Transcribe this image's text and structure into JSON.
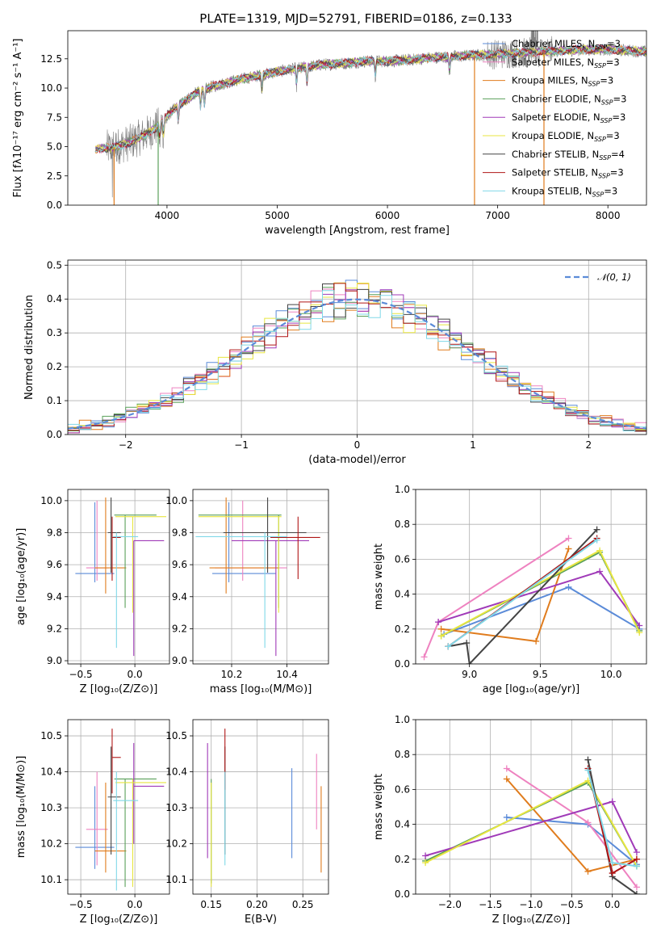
{
  "figure": {
    "title": "PLATE=1319, MJD=52791, FIBERID=0186, z=0.133"
  },
  "colors": {
    "Chabrier MILES": "#5b8bd8",
    "Salpeter MILES": "#ee82c0",
    "Kroupa MILES": "#e07c1d",
    "Chabrier ELODIE": "#5aa05a",
    "Salpeter ELODIE": "#a03ab8",
    "Kroupa ELODIE": "#e8e640",
    "Chabrier STELIB": "#444444",
    "Salpeter STELIB": "#b01616",
    "Kroupa STELIB": "#80d8e8",
    "gaussian": "#5b8bd8",
    "observed": "#808080",
    "grid": "#b0b0b0"
  },
  "chart_data": [
    {
      "id": "spectrum",
      "type": "line",
      "xlabel": "wavelength [Angstrom, rest frame]",
      "ylabel": "Flux [fλ10⁻¹⁷ erg cm⁻² s⁻¹ A⁻¹]",
      "xlim": [
        3100,
        8350
      ],
      "ylim": [
        0,
        14.9
      ],
      "xticks": [
        4000,
        5000,
        6000,
        7000,
        8000
      ],
      "yticks": [
        0.0,
        2.5,
        5.0,
        7.5,
        10.0,
        12.5
      ],
      "legend_position": "top-right",
      "continuum": {
        "x": [
          3350,
          3500,
          3650,
          3800,
          3900,
          4000,
          4100,
          4250,
          4400,
          4600,
          4800,
          5000,
          5200,
          5400,
          5600,
          5800,
          6000,
          6200,
          6400,
          6600,
          6800,
          7000,
          7200,
          7400,
          7600,
          7800,
          8000,
          8200,
          8350
        ],
        "y": [
          4.8,
          4.9,
          5.3,
          6.0,
          6.6,
          7.6,
          8.5,
          9.5,
          10.1,
          10.6,
          11.0,
          11.4,
          11.7,
          12.0,
          12.1,
          12.3,
          12.3,
          12.4,
          12.6,
          12.7,
          12.8,
          12.9,
          13.0,
          13.1,
          13.2,
          13.3,
          13.3,
          13.2,
          13.1
        ]
      },
      "series": [
        {
          "name": "Chabrier MILES, N$_{SSP}$=3",
          "legend": "Chabrier MILES, N",
          "sub": "SSP",
          "tail": "=3"
        },
        {
          "name": "Salpeter MILES, N$_{SSP}$=3",
          "legend": "Salpeter MILES, N",
          "sub": "SSP",
          "tail": "=3"
        },
        {
          "name": "Kroupa MILES, N$_{SSP}$=3",
          "legend": "Kroupa MILES, N",
          "sub": "SSP",
          "tail": "=3"
        },
        {
          "name": "Chabrier ELODIE, N$_{SSP}$=3",
          "legend": "Chabrier ELODIE, N",
          "sub": "SSP",
          "tail": "=3"
        },
        {
          "name": "Salpeter ELODIE, N$_{SSP}$=3",
          "legend": "Salpeter ELODIE, N",
          "sub": "SSP",
          "tail": "=3"
        },
        {
          "name": "Kroupa ELODIE, N$_{SSP}$=3",
          "legend": "Kroupa ELODIE, N",
          "sub": "SSP",
          "tail": "=3"
        },
        {
          "name": "Chabrier STELIB, N$_{SSP}$=4",
          "legend": "Chabrier STELIB, N",
          "sub": "SSP",
          "tail": "=4"
        },
        {
          "name": "Salpeter STELIB, N$_{SSP}$=3",
          "legend": "Salpeter STELIB, N",
          "sub": "SSP",
          "tail": "=3"
        },
        {
          "name": "Kroupa STELIB, N$_{SSP}$=3",
          "legend": "Kroupa STELIB, N",
          "sub": "SSP",
          "tail": "=3"
        }
      ],
      "spikes": [
        {
          "x": 3520,
          "color": "Kroupa MILES"
        },
        {
          "x": 3920,
          "color": "Chabrier ELODIE"
        },
        {
          "x": 6790,
          "color": "Kroupa MILES"
        },
        {
          "x": 7420,
          "color": "Kroupa MILES"
        }
      ]
    },
    {
      "id": "residuals",
      "type": "line",
      "xlabel": "(data-model)/error",
      "ylabel": "Normed distribution",
      "xlim": [
        -2.5,
        2.5
      ],
      "ylim": [
        0,
        0.515
      ],
      "xticks": [
        -2,
        -1,
        0,
        1,
        2
      ],
      "yticks": [
        0.0,
        0.1,
        0.2,
        0.3,
        0.4,
        0.5
      ],
      "legend_position": "top-right",
      "gaussian_label": "𝒩(0, 1)",
      "bin_width": 0.1
    },
    {
      "id": "age_vs_Z",
      "type": "scatter",
      "xlabel": "Z [log₁₀(Z/Z⊙)]",
      "ylabel": "age  [log₁₀(age/yr)]",
      "xlim": [
        -0.62,
        0.32
      ],
      "ylim": [
        8.98,
        10.07
      ],
      "xticks": [
        -0.5,
        0.0
      ],
      "yticks": [
        9.0,
        9.2,
        9.4,
        9.6,
        9.8,
        10.0
      ],
      "points": [
        {
          "s": "Chabrier MILES",
          "x": -0.37,
          "y": 9.545,
          "xlo": -0.55,
          "xhi": -0.19,
          "ylo": 9.49,
          "yhi": 9.99
        },
        {
          "s": "Salpeter MILES",
          "x": -0.35,
          "y": 9.58,
          "xlo": -0.45,
          "xhi": -0.25,
          "ylo": 9.5,
          "yhi": 10.0
        },
        {
          "s": "Kroupa MILES",
          "x": -0.27,
          "y": 9.58,
          "xlo": -0.37,
          "xhi": -0.08,
          "ylo": 9.42,
          "yhi": 10.02
        },
        {
          "s": "Chabrier ELODIE",
          "x": -0.09,
          "y": 9.91,
          "xlo": -0.19,
          "xhi": 0.2,
          "ylo": 9.33,
          "yhi": 9.91
        },
        {
          "s": "Salpeter ELODIE",
          "x": -0.01,
          "y": 9.75,
          "xlo": -0.01,
          "xhi": 0.27,
          "ylo": 9.03,
          "yhi": 9.75
        },
        {
          "s": "Kroupa ELODIE",
          "x": -0.02,
          "y": 9.9,
          "xlo": -0.18,
          "xhi": 0.29,
          "ylo": 9.3,
          "yhi": 9.9
        },
        {
          "s": "Chabrier STELIB",
          "x": -0.22,
          "y": 9.8,
          "xlo": -0.25,
          "xhi": -0.13,
          "ylo": 9.55,
          "yhi": 10.02
        },
        {
          "s": "Salpeter STELIB",
          "x": -0.21,
          "y": 9.77,
          "xlo": -0.21,
          "xhi": -0.13,
          "ylo": 9.5,
          "yhi": 9.9
        },
        {
          "s": "Kroupa STELIB",
          "x": -0.17,
          "y": 9.775,
          "xlo": -0.2,
          "xhi": 0.03,
          "ylo": 9.08,
          "yhi": 9.8
        }
      ]
    },
    {
      "id": "age_vs_mass",
      "type": "scatter",
      "xlabel": "mass [log₁₀(M/M⊙)]",
      "ylabel": "",
      "xlim": [
        10.06,
        10.55
      ],
      "ylim": [
        8.98,
        10.07
      ],
      "xticks": [
        10.2,
        10.4
      ],
      "yticks": [
        9.0,
        9.2,
        9.4,
        9.6,
        9.8,
        10.0
      ],
      "points": [
        {
          "s": "Chabrier MILES",
          "x": 10.19,
          "y": 9.545,
          "xlo": 10.13,
          "xhi": 10.36,
          "ylo": 9.49,
          "yhi": 9.99
        },
        {
          "s": "Salpeter MILES",
          "x": 10.24,
          "y": 9.58,
          "xlo": 10.14,
          "xhi": 10.4,
          "ylo": 9.5,
          "yhi": 10.0
        },
        {
          "s": "Kroupa MILES",
          "x": 10.18,
          "y": 9.58,
          "xlo": 10.12,
          "xhi": 10.37,
          "ylo": 9.42,
          "yhi": 10.02
        },
        {
          "s": "Chabrier ELODIE",
          "x": 10.37,
          "y": 9.91,
          "xlo": 10.08,
          "xhi": 10.38,
          "ylo": 9.33,
          "yhi": 9.91
        },
        {
          "s": "Salpeter ELODIE",
          "x": 10.36,
          "y": 9.75,
          "xlo": 10.2,
          "xhi": 10.48,
          "ylo": 9.03,
          "yhi": 9.75
        },
        {
          "s": "Kroupa ELODIE",
          "x": 10.37,
          "y": 9.9,
          "xlo": 10.08,
          "xhi": 10.38,
          "ylo": 9.3,
          "yhi": 9.9
        },
        {
          "s": "Chabrier STELIB",
          "x": 10.33,
          "y": 9.8,
          "xlo": 10.17,
          "xhi": 10.47,
          "ylo": 9.55,
          "yhi": 10.02
        },
        {
          "s": "Salpeter STELIB",
          "x": 10.44,
          "y": 9.77,
          "xlo": 10.34,
          "xhi": 10.52,
          "ylo": 9.51,
          "yhi": 9.9
        },
        {
          "s": "Kroupa STELIB",
          "x": 10.32,
          "y": 9.775,
          "xlo": 10.07,
          "xhi": 10.4,
          "ylo": 9.08,
          "yhi": 9.8
        }
      ]
    },
    {
      "id": "weight_vs_age",
      "type": "line",
      "xlabel": "age  [log₁₀(age/yr)]",
      "ylabel": "mass weight",
      "xlim": [
        8.62,
        10.25
      ],
      "ylim": [
        0,
        1.0
      ],
      "xticks": [
        9.0,
        9.5,
        10.0
      ],
      "yticks": [
        0.0,
        0.2,
        0.4,
        0.6,
        0.8,
        1.0
      ],
      "series": [
        {
          "s": "Chabrier MILES",
          "x": [
            8.82,
            9.7,
            10.2
          ],
          "y": [
            0.17,
            0.44,
            0.2
          ]
        },
        {
          "s": "Salpeter MILES",
          "x": [
            8.68,
            8.78,
            9.7
          ],
          "y": [
            0.04,
            0.24,
            0.72
          ]
        },
        {
          "s": "Kroupa MILES",
          "x": [
            8.8,
            9.47,
            9.7
          ],
          "y": [
            0.2,
            0.13,
            0.66
          ]
        },
        {
          "s": "Chabrier ELODIE",
          "x": [
            8.8,
            9.92,
            10.2
          ],
          "y": [
            0.16,
            0.64,
            0.19
          ]
        },
        {
          "s": "Salpeter ELODIE",
          "x": [
            8.78,
            9.92,
            10.2
          ],
          "y": [
            0.24,
            0.53,
            0.22
          ]
        },
        {
          "s": "Kroupa ELODIE",
          "x": [
            8.8,
            9.92,
            10.2
          ],
          "y": [
            0.16,
            0.65,
            0.18
          ]
        },
        {
          "s": "Chabrier STELIB",
          "x": [
            8.85,
            8.98,
            9.0,
            9.9
          ],
          "y": [
            0.1,
            0.12,
            0.0,
            0.77
          ]
        },
        {
          "s": "Salpeter STELIB",
          "x": [
            8.85,
            9.9
          ],
          "y": [
            0.1,
            0.72
          ]
        },
        {
          "s": "Kroupa STELIB",
          "x": [
            8.85,
            9.9
          ],
          "y": [
            0.1,
            0.71
          ]
        }
      ]
    },
    {
      "id": "mass_vs_Z",
      "type": "scatter",
      "xlabel": "Z [log₁₀(Z/Z⊙)]",
      "ylabel": "mass [log₁₀(M/M⊙)]",
      "xlim": [
        -0.62,
        0.32
      ],
      "ylim": [
        10.06,
        10.545
      ],
      "xticks": [
        -0.5,
        0.0
      ],
      "yticks": [
        10.1,
        10.2,
        10.3,
        10.4,
        10.5
      ],
      "points": [
        {
          "s": "Chabrier MILES",
          "x": -0.37,
          "y": 10.19,
          "xlo": -0.55,
          "xhi": -0.19,
          "ylo": 10.13,
          "yhi": 10.36
        },
        {
          "s": "Salpeter MILES",
          "x": -0.35,
          "y": 10.24,
          "xlo": -0.45,
          "xhi": -0.25,
          "ylo": 10.14,
          "yhi": 10.4
        },
        {
          "s": "Kroupa MILES",
          "x": -0.27,
          "y": 10.18,
          "xlo": -0.37,
          "xhi": -0.08,
          "ylo": 10.12,
          "yhi": 10.37
        },
        {
          "s": "Chabrier ELODIE",
          "x": -0.09,
          "y": 10.38,
          "xlo": -0.19,
          "xhi": 0.2,
          "ylo": 10.08,
          "yhi": 10.38
        },
        {
          "s": "Salpeter ELODIE",
          "x": -0.01,
          "y": 10.36,
          "xlo": -0.01,
          "xhi": 0.27,
          "ylo": 10.2,
          "yhi": 10.48
        },
        {
          "s": "Kroupa ELODIE",
          "x": -0.02,
          "y": 10.37,
          "xlo": -0.18,
          "xhi": 0.29,
          "ylo": 10.08,
          "yhi": 10.38
        },
        {
          "s": "Chabrier STELIB",
          "x": -0.22,
          "y": 10.33,
          "xlo": -0.25,
          "xhi": -0.13,
          "ylo": 10.17,
          "yhi": 10.47
        },
        {
          "s": "Salpeter STELIB",
          "x": -0.21,
          "y": 10.44,
          "xlo": -0.21,
          "xhi": -0.13,
          "ylo": 10.34,
          "yhi": 10.52
        },
        {
          "s": "Kroupa STELIB",
          "x": -0.17,
          "y": 10.32,
          "xlo": -0.2,
          "xhi": 0.03,
          "ylo": 10.07,
          "yhi": 10.4
        }
      ]
    },
    {
      "id": "mass_vs_ebv",
      "type": "scatter",
      "xlabel": "E(B-V)",
      "ylabel": "",
      "xlim": [
        0.13,
        0.278
      ],
      "ylim": [
        10.06,
        10.545
      ],
      "xticks": [
        0.15,
        0.2,
        0.25
      ],
      "yticks": [
        10.1,
        10.2,
        10.3,
        10.4,
        10.5
      ],
      "points": [
        {
          "s": "Chabrier MILES",
          "x": 0.238,
          "y": 10.28,
          "ylo": 10.16,
          "yhi": 10.41
        },
        {
          "s": "Salpeter MILES",
          "x": 0.265,
          "y": 10.35,
          "ylo": 10.24,
          "yhi": 10.45
        },
        {
          "s": "Kroupa MILES",
          "x": 0.27,
          "y": 10.24,
          "ylo": 10.12,
          "yhi": 10.36
        },
        {
          "s": "Chabrier ELODIE",
          "x": 0.15,
          "y": 10.26,
          "ylo": 10.09,
          "yhi": 10.38
        },
        {
          "s": "Salpeter ELODIE",
          "x": 0.146,
          "y": 10.32,
          "ylo": 10.16,
          "yhi": 10.48
        },
        {
          "s": "Kroupa ELODIE",
          "x": 0.15,
          "y": 10.25,
          "ylo": 10.08,
          "yhi": 10.37
        },
        {
          "s": "Chabrier STELIB",
          "x": 0.165,
          "y": 10.35,
          "ylo": 10.17,
          "yhi": 10.47
        },
        {
          "s": "Salpeter STELIB",
          "x": 0.165,
          "y": 10.44,
          "ylo": 10.35,
          "yhi": 10.52
        },
        {
          "s": "Kroupa STELIB",
          "x": 0.165,
          "y": 10.28,
          "ylo": 10.14,
          "yhi": 10.4
        }
      ]
    },
    {
      "id": "weight_vs_Z",
      "type": "line",
      "xlabel": "Z [log₁₀(Z/Z⊙)]",
      "ylabel": "mass weight",
      "xlim": [
        -2.42,
        0.42
      ],
      "ylim": [
        0,
        1.0
      ],
      "xticks": [
        -2.0,
        -1.5,
        -1.0,
        -0.5,
        0.0
      ],
      "yticks": [
        0.0,
        0.2,
        0.4,
        0.6,
        0.8,
        1.0
      ],
      "series": [
        {
          "s": "Chabrier MILES",
          "x": [
            -1.3,
            -0.3,
            0.3
          ],
          "y": [
            0.44,
            0.4,
            0.17
          ]
        },
        {
          "s": "Salpeter MILES",
          "x": [
            -1.3,
            -0.3,
            0.3
          ],
          "y": [
            0.72,
            0.41,
            0.04
          ]
        },
        {
          "s": "Kroupa MILES",
          "x": [
            -1.3,
            -0.3,
            0.3
          ],
          "y": [
            0.66,
            0.13,
            0.2
          ]
        },
        {
          "s": "Chabrier ELODIE",
          "x": [
            -2.3,
            -0.3,
            0.3
          ],
          "y": [
            0.19,
            0.64,
            0.16
          ]
        },
        {
          "s": "Salpeter ELODIE",
          "x": [
            -2.3,
            0.0,
            0.3
          ],
          "y": [
            0.22,
            0.53,
            0.24
          ]
        },
        {
          "s": "Kroupa ELODIE",
          "x": [
            -2.3,
            -0.3,
            0.3
          ],
          "y": [
            0.18,
            0.65,
            0.16
          ]
        },
        {
          "s": "Chabrier STELIB",
          "x": [
            -0.3,
            0.0,
            0.3
          ],
          "y": [
            0.77,
            0.1,
            0.0
          ]
        },
        {
          "s": "Salpeter STELIB",
          "x": [
            -0.3,
            0.0,
            0.3
          ],
          "y": [
            0.72,
            0.12,
            0.2
          ]
        },
        {
          "s": "Kroupa STELIB",
          "x": [
            -0.3,
            0.0,
            0.3
          ],
          "y": [
            0.71,
            0.18,
            0.16
          ]
        }
      ]
    }
  ]
}
